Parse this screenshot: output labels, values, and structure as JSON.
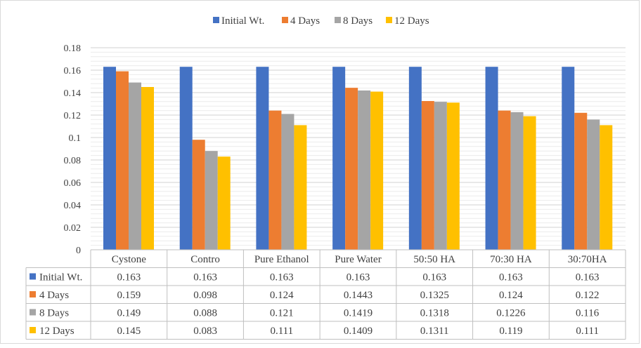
{
  "chart_data": {
    "type": "bar",
    "title": "",
    "xlabel": "",
    "ylabel": "",
    "ylim": [
      0,
      0.18
    ],
    "yticks": [
      0,
      0.02,
      0.04,
      0.06,
      0.08,
      0.1,
      0.12,
      0.14,
      0.16,
      0.18
    ],
    "ytick_labels": [
      "0",
      "0.02",
      "0.04",
      "0.06",
      "0.08",
      "0.1",
      "0.12",
      "0.14",
      "0.16",
      "0.18"
    ],
    "grid": true,
    "legend_position": "top-center",
    "data_table": true,
    "categories": [
      "Cystone",
      "Contro",
      "Pure Ethanol",
      "Pure Water",
      "50:50 HA",
      "70:30 HA",
      "30:70HA"
    ],
    "series": [
      {
        "name": "Initial Wt.",
        "color": "#4472C4",
        "values": [
          0.163,
          0.163,
          0.163,
          0.163,
          0.163,
          0.163,
          0.163
        ]
      },
      {
        "name": "4 Days",
        "color": "#ED7D31",
        "values": [
          0.159,
          0.098,
          0.124,
          0.1443,
          0.1325,
          0.124,
          0.122
        ]
      },
      {
        "name": "8 Days",
        "color": "#A5A5A5",
        "values": [
          0.149,
          0.088,
          0.121,
          0.1419,
          0.1318,
          0.1226,
          0.116
        ]
      },
      {
        "name": "12 Days",
        "color": "#FFC000",
        "values": [
          0.145,
          0.083,
          0.111,
          0.1409,
          0.1311,
          0.119,
          0.111
        ]
      }
    ],
    "table_values": [
      [
        "0.163",
        "0.163",
        "0.163",
        "0.163",
        "0.163",
        "0.163",
        "0.163"
      ],
      [
        "0.159",
        "0.098",
        "0.124",
        "0.1443",
        "0.1325",
        "0.124",
        "0.122"
      ],
      [
        "0.149",
        "0.088",
        "0.121",
        "0.1419",
        "0.1318",
        "0.1226",
        "0.116"
      ],
      [
        "0.145",
        "0.083",
        "0.111",
        "0.1409",
        "0.1311",
        "0.119",
        "0.111"
      ]
    ]
  }
}
